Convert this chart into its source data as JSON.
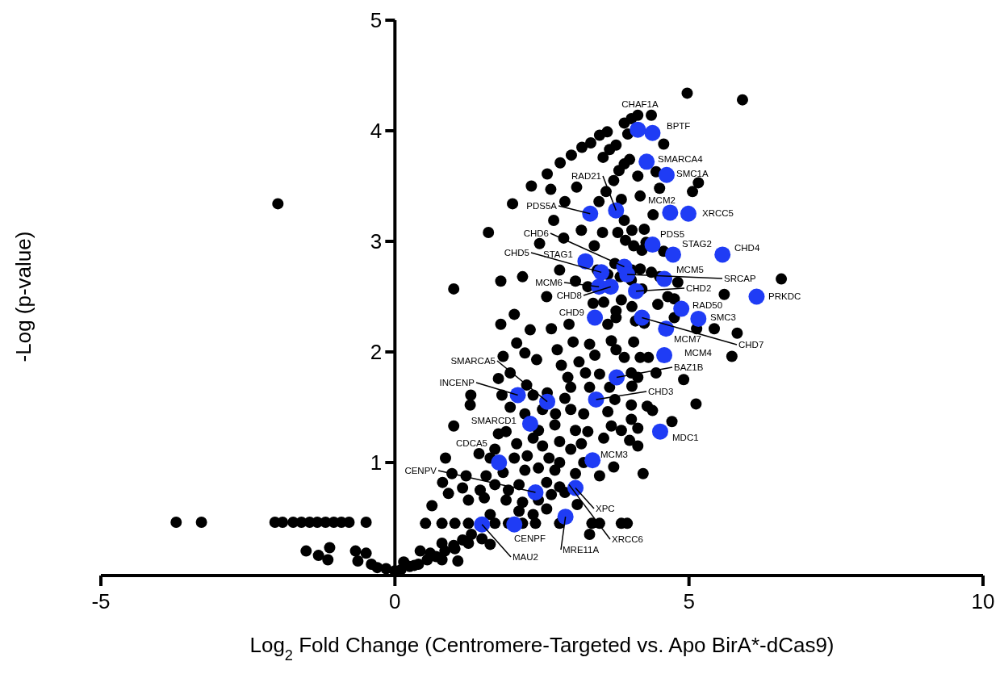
{
  "chart_data": {
    "type": "scatter",
    "xlabel": "Log$_{2}$ Fold Change (Centromere-Targeted vs. Apo BirA*-dCas9)",
    "ylabel": "-Log (p-value)",
    "xlim": [
      -5,
      10
    ],
    "ylim": [
      0,
      5
    ],
    "xticks": [
      -5,
      0,
      5,
      10
    ],
    "yticks": [
      1,
      2,
      3,
      4,
      5
    ],
    "series": [
      {
        "color": "#000000",
        "x": [
          -3.72,
          -3.29,
          -2.04,
          -1.91,
          -1.73,
          -1.59,
          -1.45,
          -1.32,
          -1.18,
          -1.04,
          -0.91,
          -0.78,
          -0.49,
          -1.99,
          -1.51,
          -1.3,
          -1.11,
          -1.14,
          -0.67,
          -0.49,
          -0.63,
          -0.4,
          -0.3,
          -0.15,
          0,
          0.1,
          0.25,
          0.4,
          0.55,
          0.7,
          0.85,
          1.0,
          1.15,
          1.3,
          2.59,
          2.81,
          3.0,
          3.18,
          3.33,
          3.48,
          3.61,
          3.9,
          4.02,
          4.13,
          4.36,
          3.96,
          4.57,
          4.97,
          5.91,
          2.32,
          2.65,
          3.09,
          2.89,
          2.0,
          2.7,
          3.54,
          3.65,
          3.76,
          3.99,
          3.9,
          3.81,
          3.72,
          3.59,
          3.47,
          3.85,
          4.13,
          4.17,
          4.44,
          4.5,
          5.06,
          5.16,
          4.39,
          3.17,
          3.53,
          1.59,
          3.9,
          3.79,
          4.03,
          4.24,
          3.92,
          4.06,
          4.2,
          4.27,
          2.46,
          2.87,
          3.39,
          4.57,
          2.8,
          2.17,
          1.8,
          1.0,
          3.07,
          3.28,
          3.44,
          3.62,
          3.74,
          4.03,
          4.17,
          3.83,
          4.02,
          4.36,
          4.5,
          4.81,
          4.2,
          4.64,
          4.75,
          4.47,
          5.6,
          6.57,
          2.58,
          3.37,
          3.55,
          3.85,
          4.03,
          3.76,
          4.75,
          1.8,
          2.03,
          2.3,
          2.66,
          2.96,
          3.62,
          3.76,
          4.09,
          4.24,
          5.13,
          5.43,
          5.82,
          5.73,
          2.07,
          2.21,
          2.41,
          2.76,
          3.03,
          3.31,
          3.4,
          3.68,
          3.76,
          4.06,
          3.9,
          4.17,
          4.31,
          4.44,
          4.91,
          5.12,
          4.71,
          4.22,
          3.72,
          3.48,
          3.1,
          1.84,
          1.96,
          1.76,
          2.83,
          2.94,
          3.13,
          3.24,
          3.48,
          4.02,
          4.13,
          4.03,
          1.29,
          1.28,
          1.82,
          2.24,
          2.35,
          2.59,
          2.89,
          2.99,
          3.31,
          3.65,
          3.74,
          4.02,
          4.29,
          4.38,
          1.96,
          2.21,
          2.51,
          2.73,
          2.99,
          3.21,
          3.62,
          1.0,
          1.76,
          1.89,
          2.44,
          2.72,
          3.07,
          3.28,
          3.68,
          3.85,
          4.02,
          4.13,
          3.55,
          3.99,
          4.13,
          1.43,
          1.7,
          2.07,
          2.35,
          2.51,
          2.8,
          3.17,
          2.99,
          0.86,
          1.62,
          2.03,
          2.25,
          2.62,
          2.8,
          3.21,
          0.97,
          1.21,
          0.81,
          1.55,
          1.84,
          2.21,
          2.44,
          2.72,
          3.07,
          1.15,
          0.91,
          1.45,
          1.7,
          1.93,
          2.11,
          2.58,
          2.8,
          2.89,
          1.25,
          1.52,
          1.89,
          2.17,
          2.44,
          2.66,
          0.63,
          2.11,
          2.35,
          2.58,
          1.62,
          0.52,
          0.8,
          1.02,
          1.25,
          1.7,
          1.93,
          2.17,
          2.39,
          2.8,
          3.35,
          3.48,
          3.85,
          3.95,
          3.31,
          0.43,
          0.6,
          0.8,
          1.02,
          1.25,
          1.48,
          1.62,
          0.8,
          1.07,
          0.15,
          0.33
        ],
        "values": [
          0.46,
          0.46,
          0.46,
          0.46,
          0.46,
          0.46,
          0.46,
          0.46,
          0.46,
          0.46,
          0.46,
          0.46,
          0.46,
          3.34,
          0.2,
          0.16,
          0.23,
          0.12,
          0.2,
          0.18,
          0.11,
          0.08,
          0.05,
          0.04,
          0.02,
          0.03,
          0.06,
          0.08,
          0.12,
          0.15,
          0.2,
          0.25,
          0.3,
          0.35,
          3.61,
          3.71,
          3.78,
          3.85,
          3.89,
          3.96,
          3.99,
          4.07,
          4.11,
          4.14,
          4.14,
          3.97,
          3.88,
          4.34,
          4.28,
          3.5,
          3.47,
          3.49,
          3.36,
          3.34,
          3.19,
          3.76,
          3.83,
          3.87,
          3.74,
          3.7,
          3.64,
          3.55,
          3.45,
          3.36,
          3.38,
          3.59,
          3.41,
          3.63,
          3.48,
          3.45,
          3.53,
          3.24,
          3.1,
          3.08,
          3.08,
          3.19,
          3.08,
          3.1,
          3.11,
          3.01,
          2.96,
          2.92,
          2.99,
          2.98,
          3.03,
          2.96,
          2.91,
          2.74,
          2.68,
          2.64,
          2.57,
          2.64,
          2.59,
          2.74,
          2.7,
          2.8,
          2.74,
          2.75,
          2.68,
          2.65,
          2.72,
          2.68,
          2.63,
          2.57,
          2.5,
          2.48,
          2.43,
          2.52,
          2.66,
          2.5,
          2.44,
          2.45,
          2.47,
          2.41,
          2.37,
          2.31,
          2.25,
          2.34,
          2.2,
          2.21,
          2.25,
          2.25,
          2.31,
          2.28,
          2.26,
          2.21,
          2.21,
          2.17,
          1.96,
          2.08,
          1.99,
          1.93,
          2.02,
          2.09,
          2.07,
          1.97,
          2.1,
          2.02,
          2.09,
          1.95,
          1.95,
          1.95,
          1.81,
          1.75,
          1.53,
          1.37,
          0.9,
          0.96,
          0.88,
          0.62,
          1.96,
          1.81,
          1.76,
          1.88,
          1.77,
          1.91,
          1.81,
          1.8,
          1.81,
          1.77,
          1.69,
          1.61,
          1.52,
          1.61,
          1.7,
          1.61,
          1.63,
          1.58,
          1.68,
          1.68,
          1.68,
          1.57,
          1.52,
          1.51,
          1.47,
          1.5,
          1.44,
          1.48,
          1.44,
          1.48,
          1.44,
          1.46,
          1.33,
          1.26,
          1.28,
          1.29,
          1.34,
          1.29,
          1.28,
          1.33,
          1.29,
          1.39,
          1.31,
          1.22,
          1.2,
          1.15,
          1.08,
          1.12,
          1.17,
          1.22,
          1.15,
          1.19,
          1.17,
          1.12,
          1.04,
          1.04,
          1.04,
          1.06,
          1.04,
          1.0,
          1.0,
          0.9,
          0.88,
          0.82,
          0.88,
          0.91,
          0.93,
          0.95,
          0.93,
          0.9,
          0.77,
          0.72,
          0.75,
          0.8,
          0.75,
          0.8,
          0.82,
          0.78,
          0.73,
          0.66,
          0.68,
          0.66,
          0.64,
          0.66,
          0.71,
          0.61,
          0.56,
          0.53,
          0.58,
          0.53,
          0.45,
          0.45,
          0.45,
          0.45,
          0.45,
          0.45,
          0.45,
          0.45,
          0.45,
          0.45,
          0.45,
          0.45,
          0.45,
          0.35,
          0.2,
          0.18,
          0.27,
          0.22,
          0.27,
          0.31,
          0.26,
          0.12,
          0.11,
          0.1,
          0.07
        ]
      },
      {
        "color": "#1f3cf5",
        "x": [
          4.13,
          4.38,
          4.28,
          4.62,
          3.76,
          3.32,
          4.68,
          4.99,
          4.38,
          4.73,
          5.57,
          3.24,
          3.9,
          3.51,
          4.58,
          3.95,
          3.47,
          3.67,
          4.1,
          6.15,
          4.87,
          5.16,
          3.4,
          4.2,
          4.61,
          4.58,
          3.77,
          3.42,
          2.09,
          2.59,
          2.3,
          4.51,
          3.36,
          3.07,
          1.77,
          2.39,
          2.03,
          1.48,
          2.9
        ],
        "values": [
          4.01,
          3.98,
          3.72,
          3.6,
          3.28,
          3.25,
          3.26,
          3.25,
          2.97,
          2.88,
          2.88,
          2.82,
          2.77,
          2.72,
          2.66,
          2.7,
          2.59,
          2.59,
          2.55,
          2.5,
          2.39,
          2.3,
          2.31,
          2.31,
          2.21,
          1.97,
          1.77,
          1.57,
          1.61,
          1.55,
          1.35,
          1.28,
          1.02,
          0.77,
          1.0,
          0.73,
          0.44,
          0.44,
          0.51
        ]
      }
    ],
    "annotations": [
      {
        "text": "CHAF1A",
        "x": 4.13,
        "y": 4.01
      },
      {
        "text": "BPTF",
        "x": 4.38,
        "y": 3.98
      },
      {
        "text": "SMARCA4",
        "x": 4.28,
        "y": 3.72
      },
      {
        "text": "SMC1A",
        "x": 4.62,
        "y": 3.6
      },
      {
        "text": "RAD21",
        "x": 3.76,
        "y": 3.28
      },
      {
        "text": "PDS5A",
        "x": 3.32,
        "y": 3.25
      },
      {
        "text": "MCM2",
        "x": 4.68,
        "y": 3.26
      },
      {
        "text": "XRCC5",
        "x": 4.99,
        "y": 3.25
      },
      {
        "text": "PDS5",
        "x": 4.38,
        "y": 2.97
      },
      {
        "text": "STAG2",
        "x": 4.73,
        "y": 2.88
      },
      {
        "text": "CHD4",
        "x": 5.57,
        "y": 2.88
      },
      {
        "text": "STAG1",
        "x": 3.24,
        "y": 2.82
      },
      {
        "text": "CHD6",
        "x": 3.9,
        "y": 2.77
      },
      {
        "text": "CHD5",
        "x": 3.51,
        "y": 2.72
      },
      {
        "text": "MCM5",
        "x": 4.58,
        "y": 2.66
      },
      {
        "text": "SRCAP",
        "x": 3.95,
        "y": 2.7
      },
      {
        "text": "MCM6",
        "x": 3.47,
        "y": 2.59
      },
      {
        "text": "CHD8",
        "x": 3.67,
        "y": 2.59
      },
      {
        "text": "CHD2",
        "x": 4.1,
        "y": 2.55
      },
      {
        "text": "PRKDC",
        "x": 6.15,
        "y": 2.5
      },
      {
        "text": "RAD50",
        "x": 4.87,
        "y": 2.39
      },
      {
        "text": "SMC3",
        "x": 5.16,
        "y": 2.3
      },
      {
        "text": "CHD9",
        "x": 3.4,
        "y": 2.31
      },
      {
        "text": "CHD7",
        "x": 4.2,
        "y": 2.31
      },
      {
        "text": "MCM7",
        "x": 4.61,
        "y": 2.21
      },
      {
        "text": "MCM4",
        "x": 4.58,
        "y": 1.97
      },
      {
        "text": "BAZ1B",
        "x": 3.77,
        "y": 1.77
      },
      {
        "text": "CHD3",
        "x": 3.42,
        "y": 1.57
      },
      {
        "text": "INCENP",
        "x": 2.09,
        "y": 1.61
      },
      {
        "text": "SMARCA5",
        "x": 2.59,
        "y": 1.55
      },
      {
        "text": "SMARCD1",
        "x": 2.3,
        "y": 1.35
      },
      {
        "text": "MDC1",
        "x": 4.51,
        "y": 1.28
      },
      {
        "text": "MCM3",
        "x": 3.36,
        "y": 1.02
      },
      {
        "text": "XPC",
        "x": 3.07,
        "y": 0.77
      },
      {
        "text": "CDCA5",
        "x": 1.77,
        "y": 1.0
      },
      {
        "text": "CENPV",
        "x": 2.39,
        "y": 0.73
      },
      {
        "text": "CENPF",
        "x": 2.03,
        "y": 0.44
      },
      {
        "text": "MAU2",
        "x": 1.48,
        "y": 0.44
      },
      {
        "text": "MRE11A",
        "x": 2.9,
        "y": 0.51
      },
      {
        "text": "XRCC6",
        "x": 2.96,
        "y": 0.8
      }
    ]
  }
}
